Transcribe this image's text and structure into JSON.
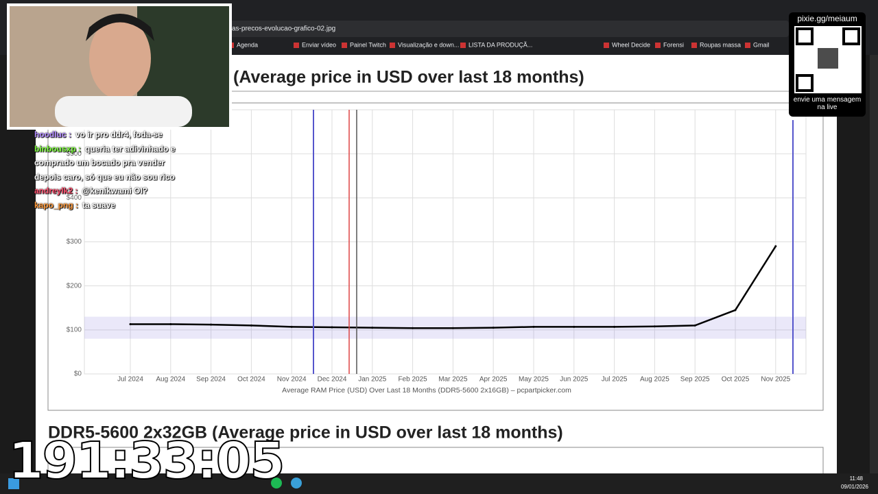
{
  "browser": {
    "tab_title": "as-precos-evolucao-grafico-02.jpg",
    "bookmarks": [
      "Agenda",
      "Enviar vídeo",
      "Painel Twitch",
      "Visualização e down...",
      "LISTA DA PRODUÇÃ...",
      "Wheel Decide",
      "Forensi",
      "Roupas massa",
      "Gmail"
    ]
  },
  "page": {
    "section_title_1": "(Average price in USD over last 18 months)",
    "chart_data": {
      "type": "line",
      "xlabel": "Average RAM Price (USD) Over Last 18 Months (DDR5-5600 2x16GB) – pcpartpicker.com",
      "categories": [
        "Jul 2024",
        "Aug 2024",
        "Sep 2024",
        "Oct 2024",
        "Nov 2024",
        "Dec 2024",
        "Jan 2025",
        "Feb 2025",
        "Mar 2025",
        "Apr 2025",
        "May 2025",
        "Jun 2025",
        "Jul 2025",
        "Aug 2025",
        "Sep 2025",
        "Oct 2025",
        "Nov 2025"
      ],
      "values": [
        113,
        113,
        112,
        110,
        107,
        106,
        105,
        104,
        104,
        105,
        107,
        107,
        107,
        108,
        110,
        145,
        290
      ],
      "color": "#000000",
      "ylim": [
        0,
        600
      ],
      "yticks": [
        {
          "value": 0,
          "label": "$0"
        },
        {
          "value": 100,
          "label": "$100"
        },
        {
          "value": 200,
          "label": "$200"
        },
        {
          "value": 300,
          "label": "$300"
        },
        {
          "value": 400,
          "label": "$400"
        },
        {
          "value": 500,
          "label": "$500"
        }
      ],
      "grid": true
    },
    "section_title_2": "DDR5-5600 2x32GB (Average price in USD over last 18 months)"
  },
  "chat": {
    "messages": [
      {
        "user": "hoodluc :",
        "text": "vo ir pro ddr4, foda-se"
      },
      {
        "user": "binbousxp :",
        "text": "queria ter adivinhado e comprado um bocado pra vender depois caro, só que eu não sou rico"
      },
      {
        "user": "andreylk2 :",
        "text": "@kenikwami OI?"
      },
      {
        "user": "kapo_png :",
        "text": "ta suave"
      }
    ]
  },
  "overlay": {
    "qr_url": "pixie.gg/meiaum",
    "qr_caption": "envie uma mensagem na live",
    "timer": "191:33:05"
  },
  "taskbar": {
    "time": "11:48",
    "date": "09/01/2026"
  }
}
